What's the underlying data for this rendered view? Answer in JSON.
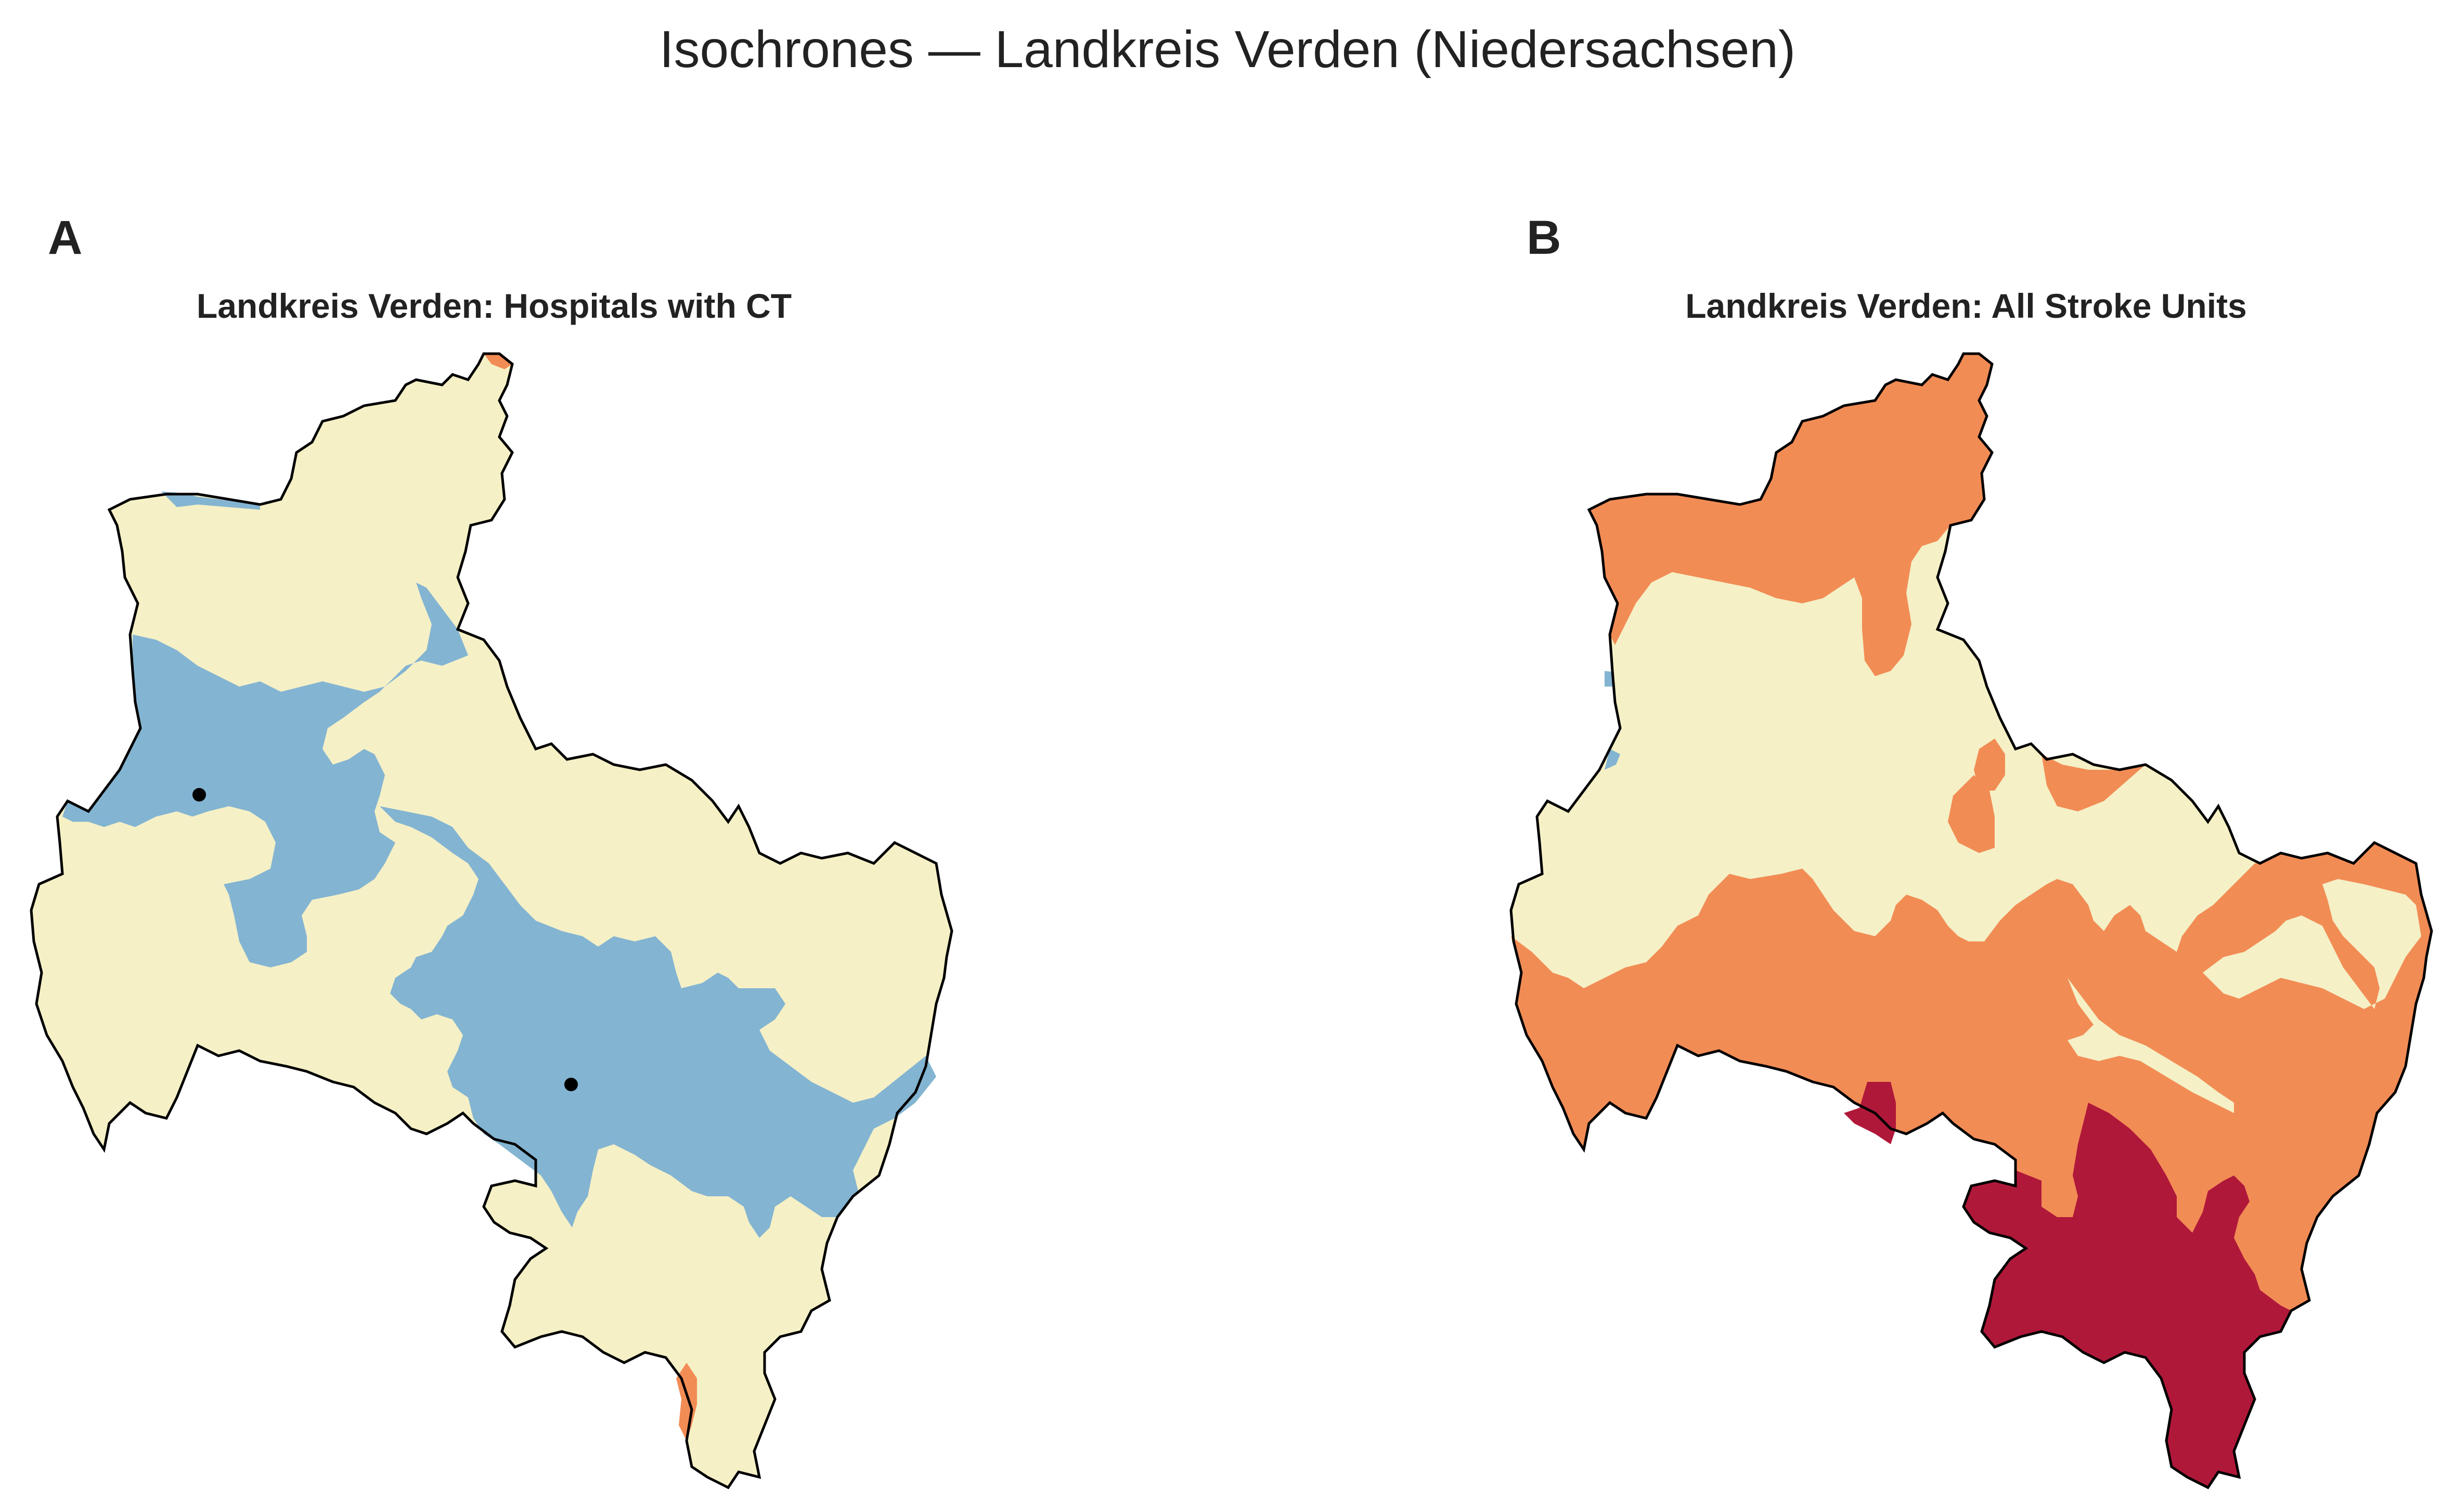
{
  "figure": {
    "title": "Isochrones — Landkreis Verden (Niedersachsen)"
  },
  "panels": [
    {
      "letter": "A",
      "title": "Landkreis Verden: Hospitals with CT",
      "markers": 2
    },
    {
      "letter": "B",
      "title": "Landkreis Verden: All Stroke Units"
    }
  ],
  "colors": {
    "zone_near": "#83b4d2",
    "zone_mid": "#f5f0c6",
    "zone_far": "#f28c55",
    "zone_farthest": "#b0183a",
    "outline": "#000000",
    "marker": "#000000"
  }
}
